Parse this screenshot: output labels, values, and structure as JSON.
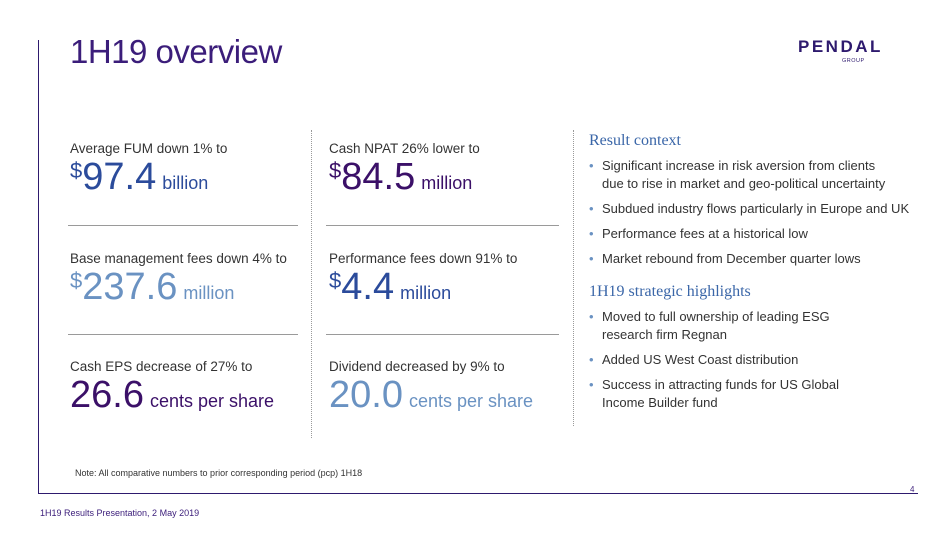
{
  "title": "1H19 overview",
  "logo": {
    "word": "PENDAL",
    "sub": "GROUP"
  },
  "metrics": [
    {
      "label": "Average FUM down 1% to",
      "dollar": "$",
      "num": "97.4",
      "unit": "billion"
    },
    {
      "label": "Cash NPAT 26% lower to",
      "dollar": "$",
      "num": "84.5",
      "unit": "million"
    },
    {
      "label": "Base management fees down 4% to",
      "dollar": "$",
      "num": "237.6",
      "unit": "million"
    },
    {
      "label": "Performance fees down 91% to",
      "dollar": "$",
      "num": "4.4",
      "unit": "million"
    },
    {
      "label": "Cash EPS decrease of 27% to",
      "num": "26.6",
      "unit": "cents per share"
    },
    {
      "label": "Dividend decreased by 9% to",
      "num": "20.0",
      "unit": "cents per share"
    }
  ],
  "result_context": {
    "title": "Result context",
    "items": [
      {
        "line1": "Significant increase in risk aversion from clients",
        "line2": "due to rise in market and geo-political uncertainty"
      },
      {
        "line1": "Subdued industry flows particularly in Europe and UK"
      },
      {
        "line1": "Performance fees at a historical low"
      },
      {
        "line1": "Market rebound from December quarter lows"
      }
    ]
  },
  "strategic": {
    "title": "1H19 strategic highlights",
    "items": [
      {
        "line1": "Moved to full ownership of leading ESG",
        "line2": "research firm Regnan"
      },
      {
        "line1": "Added US West Coast distribution"
      },
      {
        "line1": "Success in attracting funds for US Global",
        "line2": "Income Builder fund"
      }
    ]
  },
  "bullet_char": "•",
  "note": "Note: All comparative numbers to prior corresponding period (pcp) 1H18",
  "footer": "1H19 Results Presentation, 2 May 2019",
  "page_number": "4",
  "colors": {
    "purple": "#3b1d7a",
    "blue": "#2b4b9b",
    "light_blue": "#6a92c2"
  }
}
